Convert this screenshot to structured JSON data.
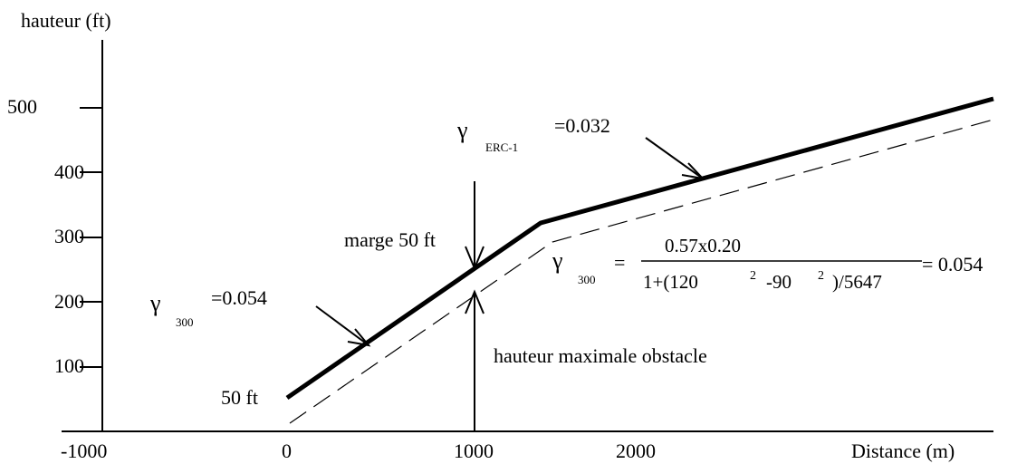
{
  "axes": {
    "y_title": "hauteur (ft)",
    "x_title": "Distance (m)",
    "y_ticks": [
      "500",
      "400",
      "300",
      "200",
      "100"
    ],
    "x_ticks": [
      "-1000",
      "0",
      "1000",
      "2000"
    ]
  },
  "annotations": {
    "start_height": "50 ft",
    "margin": "marge 50 ft",
    "obstacle": "hauteur maximale obstacle"
  },
  "gradients": {
    "g300": {
      "symbol": "γ",
      "sub": "300",
      "value": "=0.054"
    },
    "gerc": {
      "symbol": "γ",
      "sub": "ERC-1",
      "value": "=0.032"
    }
  },
  "formula": {
    "symbol": "γ",
    "sub": "300",
    "equals": "=",
    "numerator": "0.57x0.20",
    "denom_a": "1+(120",
    "denom_exp1": "2",
    "denom_b": "-90",
    "denom_exp2": "2",
    "denom_c": ")/5647",
    "result": "= 0.054"
  }
}
